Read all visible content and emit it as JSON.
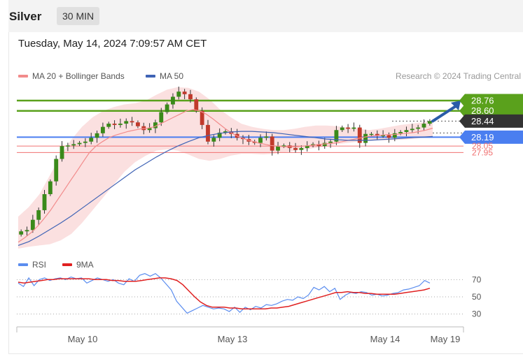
{
  "header": {
    "title": "Silver",
    "timeframe": "30 MIN"
  },
  "datetime": "Tuesday, May 14, 2024 7:09:57 AM CET",
  "legend": [
    {
      "label": "MA 20 + Bollinger Bands",
      "color": "#f28b8b"
    },
    {
      "label": "MA 50",
      "color": "#3f63b5"
    }
  ],
  "credit": "Research © 2024 Trading Central",
  "rsi_legend": [
    {
      "label": "RSI",
      "color": "#5b8def"
    },
    {
      "label": "9MA",
      "color": "#e02020"
    }
  ],
  "colors": {
    "resistance": "#5aa11c",
    "support": "#4a7ef0",
    "minor_support": "#f07070",
    "current": "#333333",
    "bull": "#3a8a1a",
    "bear": "#c0392b",
    "bands": "#fadada",
    "arrow": "#2a5ca8"
  },
  "chart_data": [
    {
      "type": "candlestick",
      "x_labels": [
        "May 10",
        "May 13",
        "May 14",
        "May 19"
      ],
      "ylim": [
        26.45,
        29.0
      ],
      "levels": [
        {
          "label": "28.76",
          "value": 28.76,
          "kind": "resistance"
        },
        {
          "label": "28.60",
          "value": 28.6,
          "kind": "resistance"
        },
        {
          "label": "28.44",
          "value": 28.44,
          "kind": "current"
        },
        {
          "label": "28.19",
          "value": 28.19,
          "kind": "support"
        },
        {
          "label": "28.05",
          "value": 28.05,
          "kind": "minor-support"
        },
        {
          "label": "27.95",
          "value": 27.95,
          "kind": "minor-support"
        }
      ],
      "price": [
        26.72,
        26.74,
        26.9,
        27.05,
        27.3,
        27.5,
        27.85,
        28.05,
        28.06,
        28.08,
        28.1,
        28.12,
        28.18,
        28.25,
        28.35,
        28.4,
        28.38,
        28.4,
        28.44,
        28.42,
        28.36,
        28.3,
        28.33,
        28.42,
        28.58,
        28.7,
        28.82,
        28.9,
        28.86,
        28.78,
        28.6,
        28.38,
        28.12,
        28.18,
        28.26,
        28.28,
        28.24,
        28.18,
        28.16,
        28.12,
        28.1,
        28.18,
        28.2,
        27.98,
        28.05,
        28.06,
        28.02,
        27.99,
        28.02,
        28.06,
        28.08,
        28.05,
        28.1,
        28.12,
        28.3,
        28.34,
        28.32,
        28.34,
        28.1,
        28.24,
        28.24,
        28.22,
        28.22,
        28.18,
        28.25,
        28.27,
        28.3,
        28.32,
        28.34,
        28.4,
        28.44
      ],
      "ma20": [
        26.55,
        26.62,
        26.7,
        26.8,
        26.92,
        27.05,
        27.2,
        27.35,
        27.5,
        27.65,
        27.8,
        27.95,
        28.05,
        28.12,
        28.18,
        28.22,
        28.25,
        28.28,
        28.3,
        28.32,
        28.33,
        28.35,
        28.4,
        28.45,
        28.5,
        28.55,
        28.6,
        28.62,
        28.6,
        28.55,
        28.48,
        28.4,
        28.32,
        28.25,
        28.2,
        28.16,
        28.13,
        28.1,
        28.08,
        28.06,
        28.05,
        28.04,
        28.04,
        28.04,
        28.05,
        28.06,
        28.07,
        28.08,
        28.09,
        28.1,
        28.12,
        28.14,
        28.16,
        28.18,
        28.2,
        28.21,
        28.22,
        28.23,
        28.23,
        28.24,
        28.25,
        28.26,
        28.28,
        28.3,
        28.33
      ],
      "ma50": [
        26.5,
        26.56,
        26.65,
        26.75,
        26.85,
        26.96,
        27.08,
        27.2,
        27.32,
        27.44,
        27.56,
        27.68,
        27.78,
        27.88,
        27.97,
        28.05,
        28.12,
        28.18,
        28.22,
        28.25,
        28.27,
        28.28,
        28.28,
        28.27,
        28.26,
        28.24,
        28.22,
        28.2,
        28.18,
        28.16,
        28.15,
        28.14,
        28.14,
        28.14,
        28.15,
        28.16,
        28.17,
        28.18,
        28.19,
        28.2
      ],
      "bb_upper": [
        26.95,
        27.1,
        27.3,
        27.6,
        27.9,
        28.15,
        28.35,
        28.5,
        28.6,
        28.66,
        28.7,
        28.72,
        28.76,
        28.85,
        28.93,
        28.97,
        28.96,
        28.9,
        28.78,
        28.62,
        28.5,
        28.4,
        28.35,
        28.32,
        28.3,
        28.3,
        28.32,
        28.35,
        28.37,
        28.37,
        28.36,
        28.34,
        28.32,
        28.3,
        28.32,
        28.35,
        28.38,
        28.4,
        28.42,
        28.45
      ],
      "bb_lower": [
        26.45,
        26.48,
        26.5,
        26.52,
        26.58,
        26.68,
        26.85,
        27.05,
        27.25,
        27.45,
        27.65,
        27.8,
        27.9,
        27.98,
        28.0,
        27.98,
        27.92,
        27.85,
        27.82,
        27.85,
        27.9,
        27.93,
        27.93,
        27.92,
        27.93,
        27.95,
        27.98,
        28.0,
        28.02,
        28.05,
        28.08,
        28.1,
        28.12,
        28.13,
        28.14,
        28.14,
        28.15,
        28.16,
        28.18,
        28.2
      ]
    },
    {
      "type": "line",
      "title": "RSI",
      "yticks": [
        70,
        50,
        30
      ],
      "ylim": [
        20,
        80
      ],
      "series": [
        {
          "name": "RSI",
          "values": [
            66,
            62,
            72,
            63,
            70,
            72,
            69,
            71,
            72,
            70,
            73,
            71,
            72,
            66,
            69,
            72,
            70,
            68,
            70,
            66,
            64,
            71,
            68,
            75,
            77,
            74,
            77,
            72,
            65,
            58,
            45,
            38,
            31,
            34,
            37,
            40,
            38,
            36,
            37,
            36,
            33,
            38,
            32,
            38,
            35,
            39,
            37,
            41,
            40,
            42,
            45,
            47,
            46,
            50,
            48,
            52,
            61,
            58,
            62,
            56,
            60,
            47,
            52,
            55,
            54,
            56,
            55,
            52,
            53,
            51,
            52,
            54,
            55,
            58,
            59,
            61,
            63,
            69,
            66
          ]
        },
        {
          "name": "9MA",
          "values": [
            67,
            66,
            67,
            68,
            69,
            70,
            70,
            71,
            71,
            71,
            71,
            71,
            71,
            70,
            70,
            70,
            69,
            69,
            68,
            68,
            68,
            69,
            70,
            71,
            72,
            72,
            71,
            69,
            64,
            57,
            50,
            44,
            40,
            38,
            38,
            38,
            37,
            37,
            36,
            36,
            36,
            36,
            36,
            37,
            37,
            38,
            39,
            41,
            43,
            45,
            47,
            49,
            51,
            53,
            55,
            55,
            56,
            55,
            55,
            54,
            54,
            53,
            53,
            53,
            53,
            54,
            55,
            56,
            57,
            58,
            60
          ]
        }
      ]
    }
  ]
}
